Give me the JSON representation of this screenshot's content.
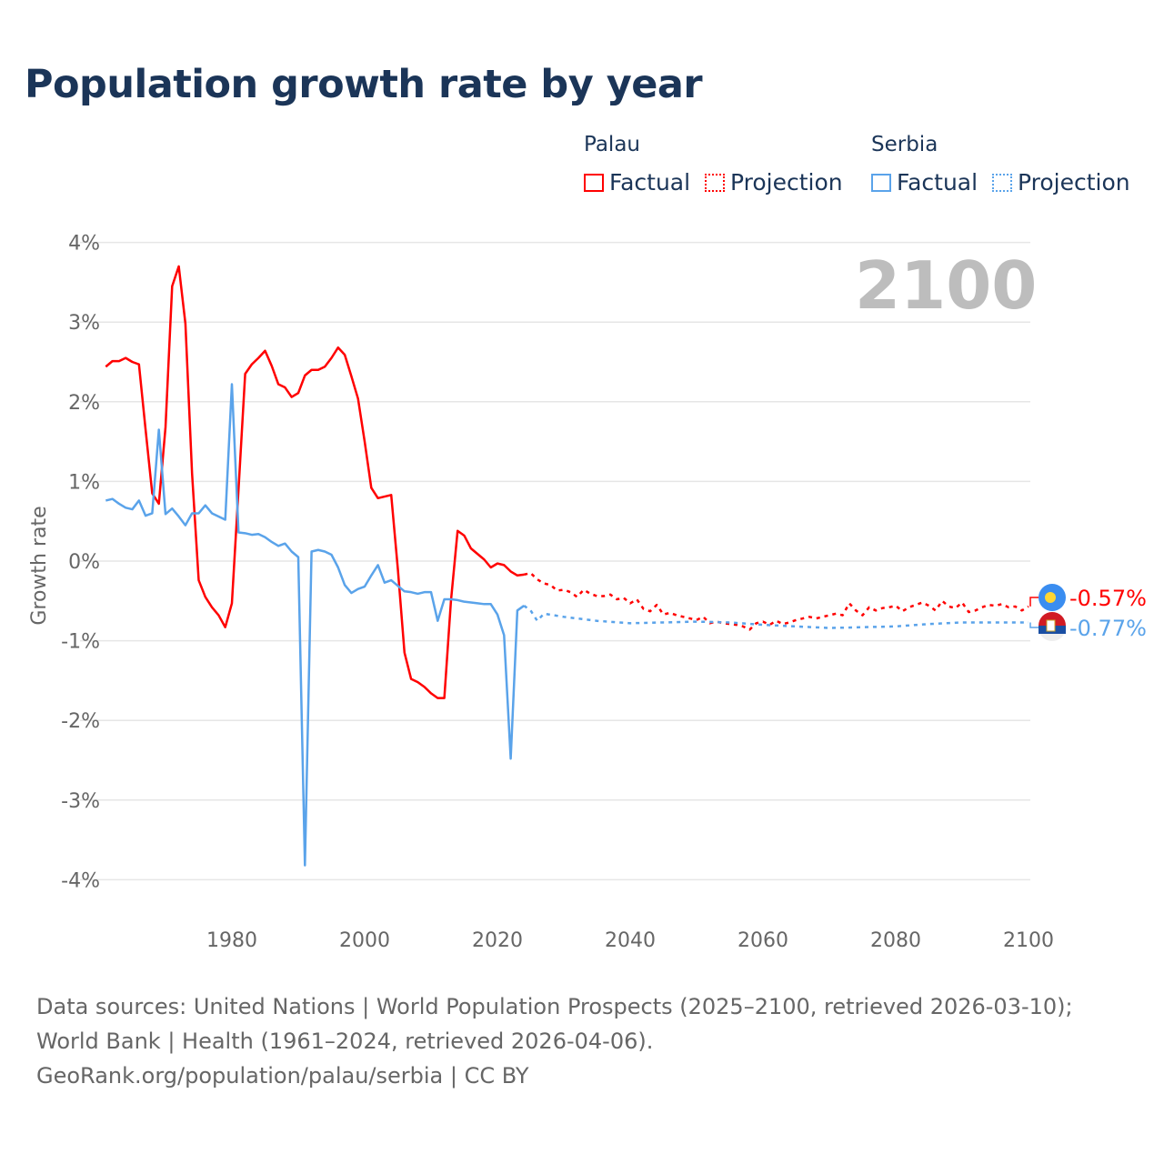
{
  "title": "Population growth rate by year",
  "legend": [
    {
      "country": "Palau",
      "factual": "Factual",
      "projection": "Projection",
      "color": "#ff0000"
    },
    {
      "country": "Serbia",
      "factual": "Factual",
      "projection": "Projection",
      "color": "#5aa3ea"
    }
  ],
  "year_label": "2100",
  "footer": {
    "sources": "Data sources: United Nations | World Population Prospects (2025–2100, retrieved 2026-03-10); World Bank | Health (1961–2024, retrieved 2026-04-06).",
    "credit": "GeoRank.org/population/palau/serbia | CC BY"
  },
  "chart_data": {
    "type": "line",
    "title": "Population growth rate by year",
    "xlabel": "",
    "ylabel": "Growth rate",
    "xlim": [
      1961,
      2100
    ],
    "ylim": [
      -4,
      4
    ],
    "xticks": [
      1980,
      2000,
      2020,
      2040,
      2060,
      2080,
      2100
    ],
    "yticks": [
      4,
      3,
      2,
      1,
      0,
      -1,
      -2,
      -3,
      -4
    ],
    "ytick_labels": [
      "4%",
      "3%",
      "2%",
      "1%",
      "0%",
      "-1%",
      "-2%",
      "-3%",
      "-4%"
    ],
    "grid": true,
    "legend_position": "top-right",
    "series": [
      {
        "name": "Palau Factual",
        "color": "#ff0000",
        "dashed": false,
        "start_year": 1961,
        "values": [
          2.44,
          2.51,
          2.51,
          2.55,
          2.5,
          2.47,
          1.65,
          0.85,
          0.72,
          1.68,
          3.45,
          3.7,
          2.98,
          1.1,
          -0.24,
          -0.45,
          -0.58,
          -0.68,
          -0.83,
          -0.53,
          0.9,
          2.35,
          2.47,
          2.55,
          2.64,
          2.45,
          2.22,
          2.18,
          2.06,
          2.11,
          2.33,
          2.4,
          2.4,
          2.44,
          2.55,
          2.68,
          2.59,
          2.32,
          2.04,
          1.5,
          0.92,
          0.79,
          0.81,
          0.83,
          -0.1,
          -1.15,
          -1.48,
          -1.52,
          -1.58,
          -1.66,
          -1.72,
          -1.72,
          -0.5,
          0.38,
          0.32,
          0.16,
          0.09,
          0.02,
          -0.08,
          -0.03,
          -0.05,
          -0.13,
          -0.18,
          -0.17
        ]
      },
      {
        "name": "Palau Projection",
        "color": "#ff0000",
        "dashed": true,
        "start_year": 2024,
        "values": [
          -0.17,
          -0.15,
          -0.23,
          -0.28,
          -0.3,
          -0.37,
          -0.36,
          -0.39,
          -0.45,
          -0.36,
          -0.41,
          -0.44,
          -0.44,
          -0.42,
          -0.48,
          -0.46,
          -0.53,
          -0.48,
          -0.6,
          -0.63,
          -0.55,
          -0.67,
          -0.65,
          -0.68,
          -0.7,
          -0.72,
          -0.74,
          -0.7,
          -0.78,
          -0.76,
          -0.78,
          -0.79,
          -0.8,
          -0.82,
          -0.86,
          -0.78,
          -0.76,
          -0.8,
          -0.75,
          -0.79,
          -0.77,
          -0.74,
          -0.72,
          -0.7,
          -0.72,
          -0.7,
          -0.68,
          -0.66,
          -0.68,
          -0.53,
          -0.62,
          -0.68,
          -0.58,
          -0.62,
          -0.59,
          -0.58,
          -0.56,
          -0.63,
          -0.58,
          -0.55,
          -0.52,
          -0.56,
          -0.62,
          -0.5,
          -0.57,
          -0.59,
          -0.52,
          -0.64,
          -0.62,
          -0.58,
          -0.55,
          -0.56,
          -0.54,
          -0.58,
          -0.57,
          -0.62,
          -0.57
        ]
      },
      {
        "name": "Serbia Factual",
        "color": "#5aa3ea",
        "dashed": false,
        "start_year": 1961,
        "values": [
          0.76,
          0.78,
          0.72,
          0.67,
          0.65,
          0.76,
          0.57,
          0.6,
          1.65,
          0.59,
          0.66,
          0.56,
          0.45,
          0.6,
          0.6,
          0.7,
          0.6,
          0.56,
          0.52,
          2.22,
          0.36,
          0.35,
          0.33,
          0.34,
          0.3,
          0.24,
          0.19,
          0.22,
          0.12,
          0.05,
          -3.82,
          0.12,
          0.14,
          0.12,
          0.08,
          -0.08,
          -0.3,
          -0.4,
          -0.35,
          -0.32,
          -0.18,
          -0.05,
          -0.27,
          -0.24,
          -0.31,
          -0.38,
          -0.39,
          -0.41,
          -0.39,
          -0.39,
          -0.75,
          -0.48,
          -0.48,
          -0.49,
          -0.51,
          -0.52,
          -0.53,
          -0.54,
          -0.54,
          -0.67,
          -0.93,
          -2.48,
          -0.62,
          -0.56
        ]
      },
      {
        "name": "Serbia Projection",
        "color": "#5aa3ea",
        "dashed": true,
        "x": [
          2024,
          2025,
          2026,
          2027,
          2030,
          2035,
          2040,
          2045,
          2050,
          2055,
          2060,
          2065,
          2070,
          2075,
          2080,
          2085,
          2090,
          2095,
          2100
        ],
        "values": [
          -0.56,
          -0.62,
          -0.75,
          -0.66,
          -0.7,
          -0.75,
          -0.78,
          -0.77,
          -0.76,
          -0.77,
          -0.8,
          -0.82,
          -0.84,
          -0.83,
          -0.82,
          -0.79,
          -0.77,
          -0.77,
          -0.77
        ]
      }
    ],
    "end_labels": [
      {
        "country": "Palau",
        "value": -0.57,
        "label": "-0.57%",
        "color": "#ff0000"
      },
      {
        "country": "Serbia",
        "value": -0.77,
        "label": "-0.77%",
        "color": "#5aa3ea"
      }
    ]
  }
}
